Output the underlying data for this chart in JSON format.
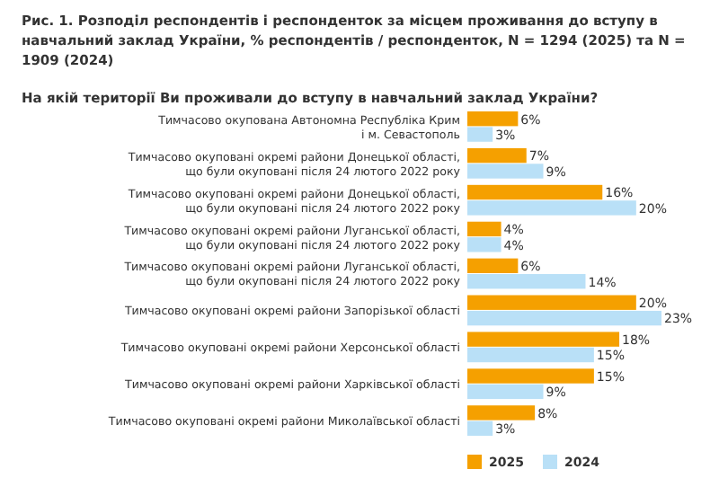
{
  "chart_data": {
    "type": "bar",
    "orientation": "horizontal",
    "title": "Рис. 1. Розподіл респондентів і респонденток за місцем проживання до вступу в навчальний заклад України, % респондентів / респонденток, N = 1294 (2025) та N = 1909 (2024)",
    "subtitle": "На якій території Ви проживали до вступу в навчальний заклад України?",
    "categories": [
      "Тимчасово окупована Автономна Республіка Крим\nі м. Севастополь",
      "Тимчасово окуповані окремі райони Донецької області,\nщо були окуповані після 24 лютого 2022 року",
      "Тимчасово окуповані окремі райони Донецької області,\nщо були окуповані після 24 лютого 2022 року",
      "Тимчасово окуповані окремі райони Луганської області,\nщо були окуповані після 24 лютого 2022 року",
      "Тимчасово окуповані окремі райони Луганської області,\nщо були окуповані після 24 лютого 2022 року",
      "Тимчасово окуповані окремі райони Запорізької області",
      "Тимчасово окуповані окремі райони Херсонської області",
      "Тимчасово окуповані окремі райони Харківської області",
      "Тимчасово окуповані окремі райони Миколаївської області"
    ],
    "series": [
      {
        "name": "2025",
        "color": "#f5a000",
        "values": [
          6,
          7,
          16,
          4,
          6,
          20,
          18,
          15,
          8
        ],
        "value_labels": [
          "6%",
          "7%",
          "16%",
          "4%",
          "6%",
          "20%",
          "18%",
          "15%",
          "8%"
        ]
      },
      {
        "name": "2024",
        "color": "#b9e0f7",
        "values": [
          3,
          9,
          20,
          4,
          14,
          23,
          15,
          9,
          3
        ],
        "value_labels": [
          "3%",
          "9%",
          "20%",
          "4%",
          "14%",
          "23%",
          "15%",
          "9%",
          "3%"
        ]
      }
    ],
    "legend": "bottom"
  }
}
